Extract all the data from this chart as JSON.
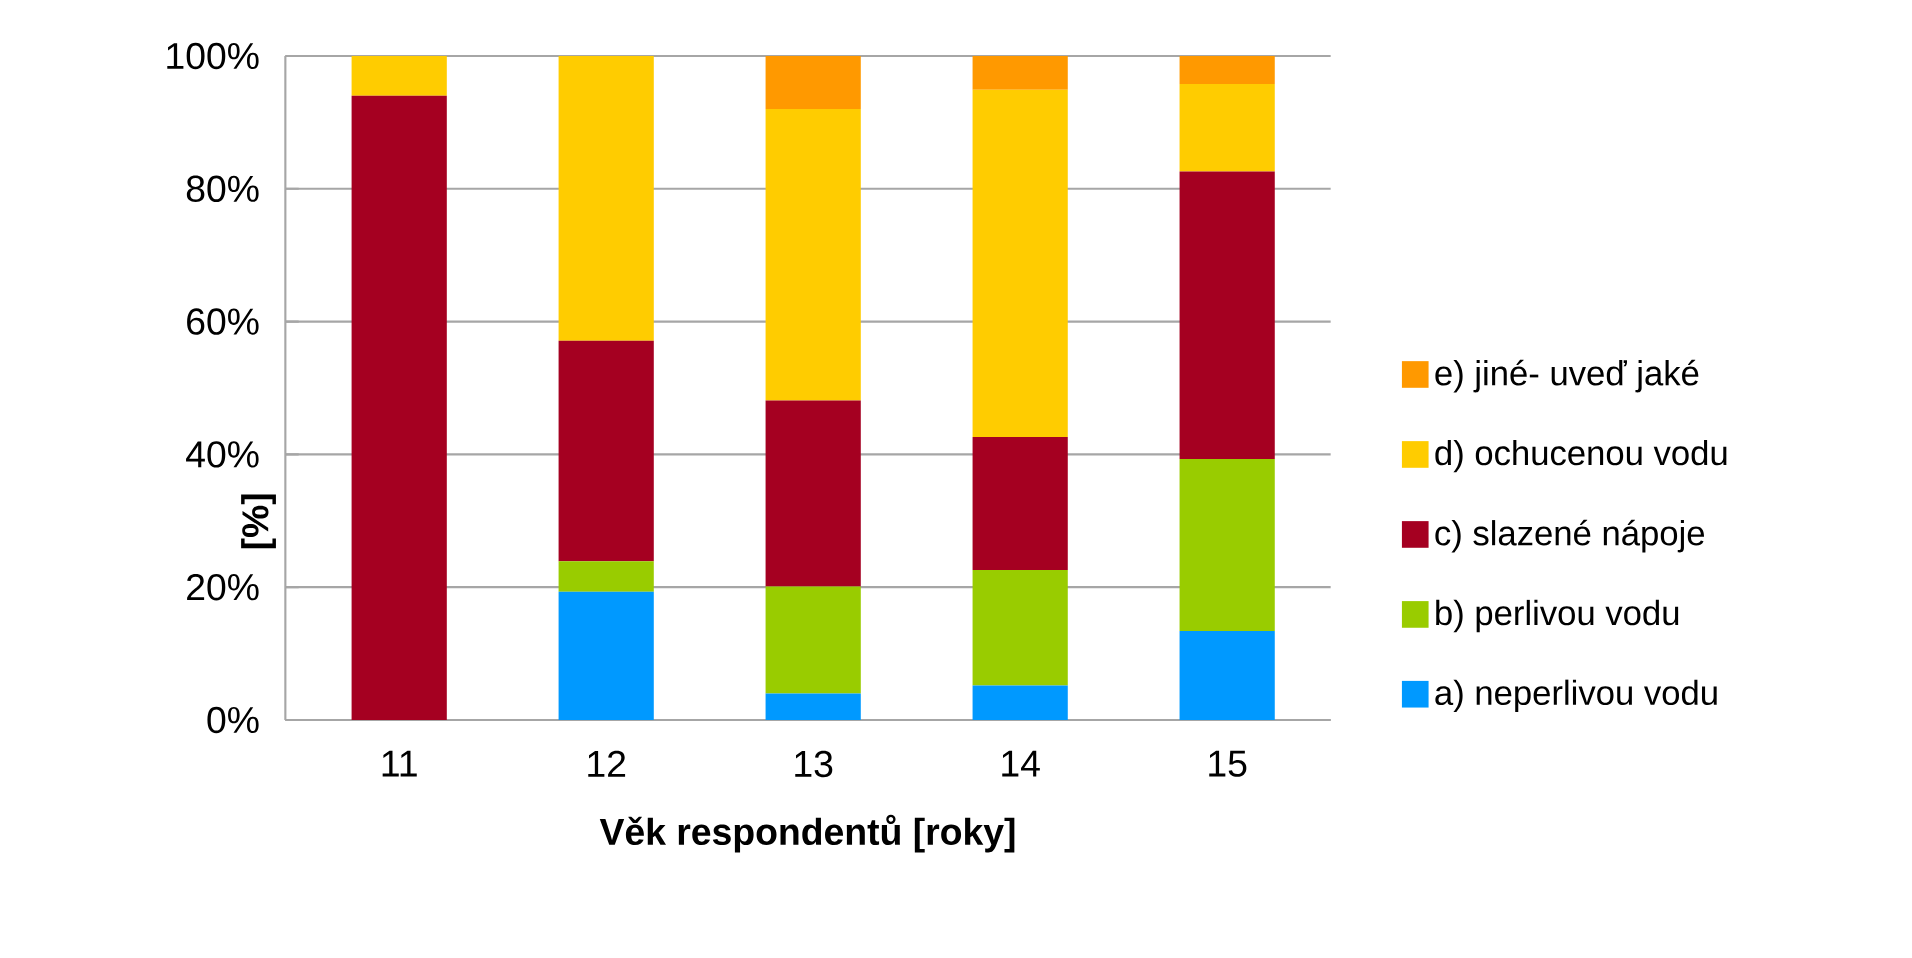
{
  "chart_data": {
    "type": "bar",
    "stacked": true,
    "xlabel": "Věk respondentů [roky]",
    "ylabel": "[%]",
    "categories": [
      "11",
      "12",
      "13",
      "14",
      "15"
    ],
    "ylim": [
      0,
      100
    ],
    "yticks": [
      {
        "value": 0,
        "label": "0%"
      },
      {
        "value": 20,
        "label": "20%"
      },
      {
        "value": 40,
        "label": "40%"
      },
      {
        "value": 60,
        "label": "60%"
      },
      {
        "value": 80,
        "label": "80%"
      },
      {
        "value": 100,
        "label": "100%"
      }
    ],
    "grid": "y",
    "legend": "right",
    "series": [
      {
        "name": "a)  neperlivou vodu",
        "color": "#0099ff",
        "values": [
          0,
          19.3,
          4.0,
          5.2,
          13.4
        ]
      },
      {
        "name": "b)  perlivou vodu",
        "color": "#99cc00",
        "values": [
          0,
          4.6,
          16.1,
          17.4,
          25.9
        ]
      },
      {
        "name": "c)  slazené nápoje",
        "color": "#a50021",
        "values": [
          94.0,
          33.2,
          28.0,
          20.0,
          43.3
        ]
      },
      {
        "name": "d) ochucenou vodu",
        "color": "#ffcc00",
        "values": [
          6.0,
          42.9,
          43.9,
          52.3,
          13.2
        ]
      },
      {
        "name": "e) jiné- uveď jaké",
        "color": "#ff9900",
        "values": [
          0,
          0,
          8.0,
          5.1,
          4.2
        ]
      }
    ]
  }
}
